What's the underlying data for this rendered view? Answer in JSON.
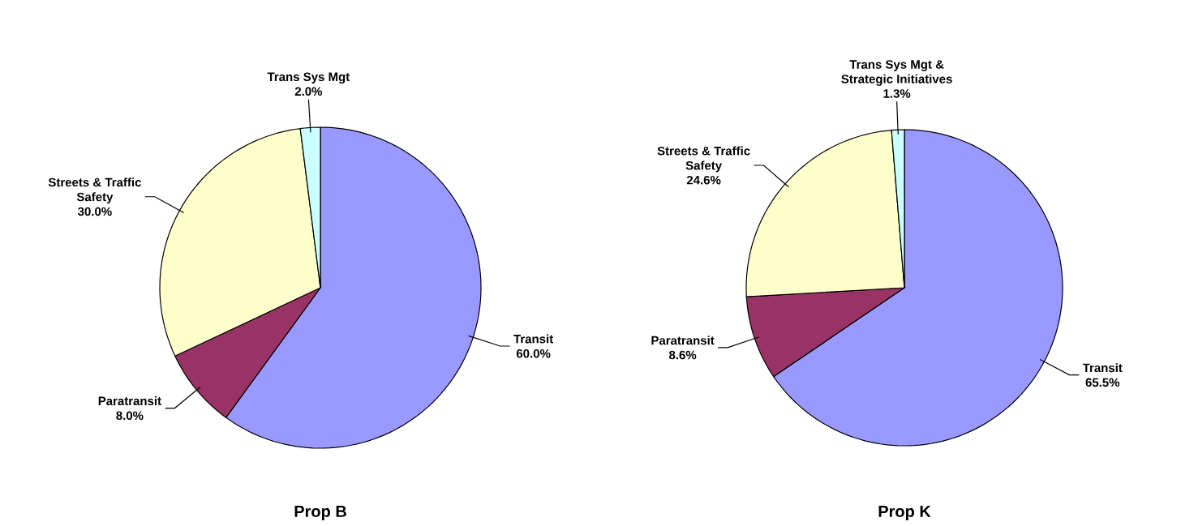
{
  "chart_data": [
    {
      "type": "pie",
      "title": "Prop B",
      "categories": [
        "Transit",
        "Paratransit",
        "Streets & Traffic Safety",
        "Trans Sys Mgt"
      ],
      "values": [
        60.0,
        8.0,
        30.0,
        2.0
      ],
      "colors": [
        "#9999ff",
        "#993366",
        "#ffffcc",
        "#ccffff"
      ],
      "value_labels": [
        "60.0%",
        "8.0%",
        "30.0%",
        "2.0%"
      ]
    },
    {
      "type": "pie",
      "title": "Prop K",
      "categories": [
        "Transit",
        "Paratransit",
        "Streets & Traffic Safety",
        "Trans Sys Mgt & Strategic Initiatives"
      ],
      "values": [
        65.5,
        8.6,
        24.6,
        1.3
      ],
      "colors": [
        "#9999ff",
        "#993366",
        "#ffffcc",
        "#ccffff"
      ],
      "value_labels": [
        "65.5%",
        "8.6%",
        "24.6%",
        "1.3%"
      ]
    }
  ]
}
